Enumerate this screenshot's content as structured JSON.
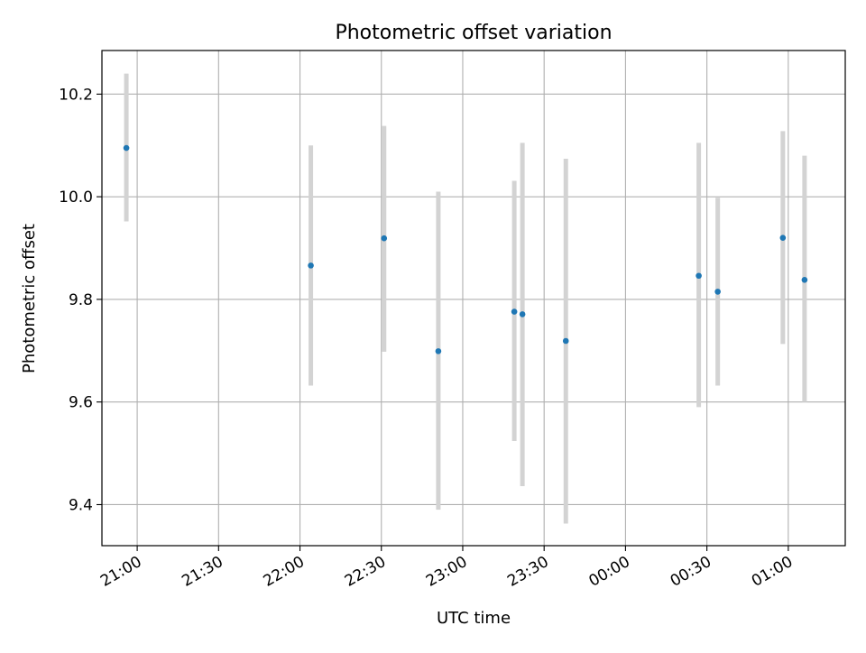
{
  "chart_data": {
    "type": "scatter",
    "title": "Photometric offset variation",
    "xlabel": "UTC time",
    "ylabel": "Photometric offset",
    "x_tick_labels": [
      "21:00",
      "21:30",
      "22:00",
      "22:30",
      "23:00",
      "23:30",
      "00:00",
      "00:30",
      "01:00"
    ],
    "y_tick_labels": [
      "9.4",
      "9.6",
      "9.8",
      "10.0",
      "10.2"
    ],
    "x_ticks": [
      "21:00",
      "21:30",
      "22:00",
      "22:30",
      "23:00",
      "23:30",
      "24:00",
      "24:30",
      "25:00"
    ],
    "y_ticks": [
      9.4,
      9.6,
      9.8,
      10.0,
      10.2
    ],
    "xlim": [
      "20:47",
      "25:21"
    ],
    "ylim": [
      9.32,
      10.285
    ],
    "grid": true,
    "colors": {
      "point": "#1f77b4",
      "errorbar": "#d3d3d3",
      "grid": "#b0b0b0"
    },
    "points": [
      {
        "x": "20:56",
        "y": 10.095,
        "y_low": 9.952,
        "y_high": 10.24
      },
      {
        "x": "22:04",
        "y": 9.866,
        "y_low": 9.632,
        "y_high": 10.1
      },
      {
        "x": "22:31",
        "y": 9.919,
        "y_low": 9.698,
        "y_high": 10.138
      },
      {
        "x": "22:51",
        "y": 9.699,
        "y_low": 9.39,
        "y_high": 10.01
      },
      {
        "x": "23:19",
        "y": 9.776,
        "y_low": 9.524,
        "y_high": 10.031
      },
      {
        "x": "23:22",
        "y": 9.771,
        "y_low": 9.436,
        "y_high": 10.105
      },
      {
        "x": "23:38",
        "y": 9.719,
        "y_low": 9.363,
        "y_high": 10.074
      },
      {
        "x": "24:27",
        "y": 9.846,
        "y_low": 9.59,
        "y_high": 10.105
      },
      {
        "x": "24:34",
        "y": 9.815,
        "y_low": 9.632,
        "y_high": 9.998
      },
      {
        "x": "24:58",
        "y": 9.92,
        "y_low": 9.713,
        "y_high": 10.128
      },
      {
        "x": "25:06",
        "y": 9.838,
        "y_low": 9.6,
        "y_high": 10.08
      }
    ]
  }
}
